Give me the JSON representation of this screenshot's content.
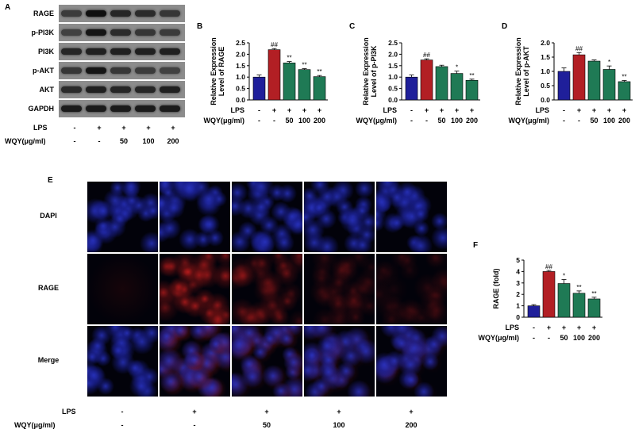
{
  "panel_letters": {
    "a": "A",
    "b": "B",
    "c": "C",
    "d": "D",
    "e": "E",
    "f": "F"
  },
  "western_blot": {
    "rows": [
      "RAGE",
      "p-PI3K",
      "PI3K",
      "p-AKT",
      "AKT",
      "GAPDH"
    ],
    "intensities": [
      [
        0.55,
        0.95,
        0.75,
        0.7,
        0.6
      ],
      [
        0.5,
        0.9,
        0.7,
        0.6,
        0.55
      ],
      [
        0.75,
        0.8,
        0.8,
        0.8,
        0.8
      ],
      [
        0.6,
        0.9,
        0.6,
        0.55,
        0.5
      ],
      [
        0.7,
        0.8,
        0.75,
        0.75,
        0.8
      ],
      [
        0.85,
        0.85,
        0.85,
        0.85,
        0.85
      ]
    ],
    "lps_label": "LPS",
    "wqy_label": "WQY(μg/ml)",
    "lps": [
      "-",
      "+",
      "+",
      "+",
      "+"
    ],
    "wqy": [
      "-",
      "-",
      "50",
      "100",
      "200"
    ]
  },
  "colors": {
    "control": "#1f1f9a",
    "lps": "#b21f24",
    "treat": "#1f7a55"
  },
  "chart_data": [
    {
      "id": "B",
      "type": "bar",
      "ylabel_line1": "Relative Expression",
      "ylabel_line2": "Level of RAGE",
      "ylim": [
        0,
        2.5
      ],
      "yticks": [
        "0.0",
        "0.5",
        "1.0",
        "1.5",
        "2.0",
        "2.5"
      ],
      "values": [
        1.0,
        2.2,
        1.62,
        1.33,
        1.02
      ],
      "errors": [
        0.09,
        0.05,
        0.06,
        0.04,
        0.05
      ],
      "sig": [
        "",
        "##",
        "**",
        "**",
        "**"
      ],
      "lps": [
        "-",
        "+",
        "+",
        "+",
        "+"
      ],
      "wqy": [
        "-",
        "-",
        "50",
        "100",
        "200"
      ],
      "lps_label": "LPS",
      "wqy_label": "WQY(μg/ml)"
    },
    {
      "id": "C",
      "type": "bar",
      "ylabel_line1": "Relative Expression",
      "ylabel_line2": "Level of p-PI3K",
      "ylim": [
        0,
        2.5
      ],
      "yticks": [
        "0.0",
        "0.5",
        "1.0",
        "1.5",
        "2.0",
        "2.5"
      ],
      "values": [
        1.0,
        1.75,
        1.46,
        1.16,
        0.86
      ],
      "errors": [
        0.09,
        0.05,
        0.06,
        0.1,
        0.05
      ],
      "sig": [
        "",
        "##",
        "",
        "*",
        "**"
      ],
      "lps": [
        "-",
        "+",
        "+",
        "+",
        "+"
      ],
      "wqy": [
        "-",
        "-",
        "50",
        "100",
        "200"
      ],
      "lps_label": "LPS",
      "wqy_label": "WQY(μg/ml)"
    },
    {
      "id": "D",
      "type": "bar",
      "ylabel_line1": "Relative Expression",
      "ylabel_line2": "Level of p-AKT",
      "ylim": [
        0,
        2.0
      ],
      "yticks": [
        "0.0",
        "0.5",
        "1.0",
        "1.5",
        "2.0"
      ],
      "values": [
        1.0,
        1.58,
        1.36,
        1.07,
        0.64
      ],
      "errors": [
        0.12,
        0.08,
        0.04,
        0.12,
        0.04
      ],
      "sig": [
        "",
        "##",
        "",
        "*",
        "**"
      ],
      "lps": [
        "-",
        "+",
        "+",
        "+",
        "+"
      ],
      "wqy": [
        "-",
        "-",
        "50",
        "100",
        "200"
      ],
      "lps_label": "LPS",
      "wqy_label": "WQY(μg/ml)"
    },
    {
      "id": "F",
      "type": "bar",
      "ylabel_line1": "RAGE (fold)",
      "ylabel_line2": "",
      "ylim": [
        0,
        5
      ],
      "yticks": [
        "0",
        "1",
        "2",
        "3",
        "4",
        "5"
      ],
      "values": [
        1.0,
        4.0,
        2.95,
        2.1,
        1.6
      ],
      "errors": [
        0.1,
        0.1,
        0.35,
        0.2,
        0.15
      ],
      "sig": [
        "",
        "##",
        "*",
        "**",
        "**"
      ],
      "lps": [
        "-",
        "+",
        "+",
        "+",
        "+"
      ],
      "wqy": [
        "-",
        "-",
        "50",
        "100",
        "200"
      ],
      "lps_label": "LPS",
      "wqy_label": "WQY(μg/ml)"
    }
  ],
  "immunofluorescence": {
    "row_labels": [
      "DAPI",
      "RAGE",
      "Merge"
    ],
    "red_intensity": [
      0.05,
      0.85,
      0.5,
      0.3,
      0.2
    ],
    "lps_label": "LPS",
    "wqy_label": "WQY(μg/ml)",
    "lps": [
      "-",
      "+",
      "+",
      "+",
      "+"
    ],
    "wqy": [
      "-",
      "-",
      "50",
      "100",
      "200"
    ]
  }
}
